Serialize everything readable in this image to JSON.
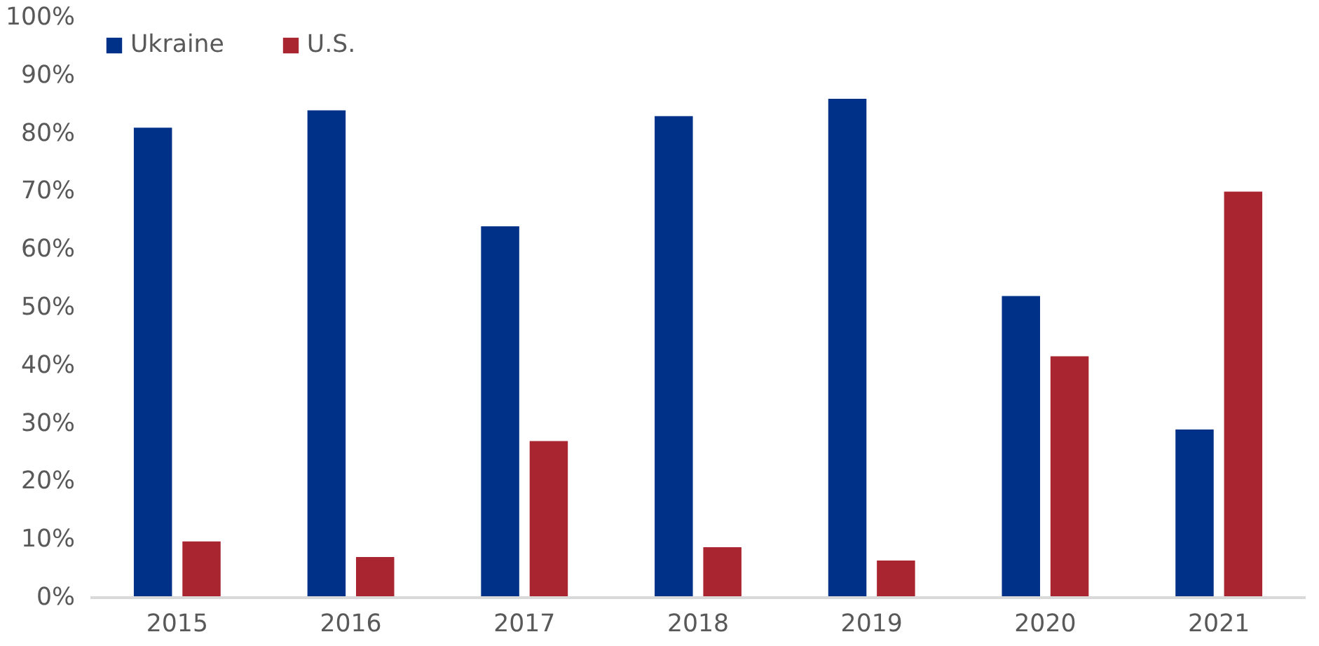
{
  "chart_data": {
    "type": "bar",
    "categories": [
      "2015",
      "2016",
      "2017",
      "2018",
      "2019",
      "2020",
      "2021"
    ],
    "series": [
      {
        "name": "Ukraine",
        "color": "#003189",
        "values": [
          81,
          84,
          64,
          83,
          86,
          52,
          29
        ]
      },
      {
        "name": "U.S.",
        "color": "#a92630",
        "values": [
          9.7,
          7,
          27,
          8.7,
          6.4,
          41.6,
          70
        ]
      }
    ],
    "ylim": [
      0,
      100
    ],
    "yticks": [
      {
        "value": 0,
        "label": "0%"
      },
      {
        "value": 10,
        "label": "10%"
      },
      {
        "value": 20,
        "label": "20%"
      },
      {
        "value": 30,
        "label": "30%"
      },
      {
        "value": 40,
        "label": "40%"
      },
      {
        "value": 50,
        "label": "50%"
      },
      {
        "value": 60,
        "label": "60%"
      },
      {
        "value": 70,
        "label": "70%"
      },
      {
        "value": 80,
        "label": "80%"
      },
      {
        "value": 90,
        "label": "90%"
      },
      {
        "value": 100,
        "label": "100%"
      }
    ],
    "grid": false,
    "legend": "top left"
  }
}
